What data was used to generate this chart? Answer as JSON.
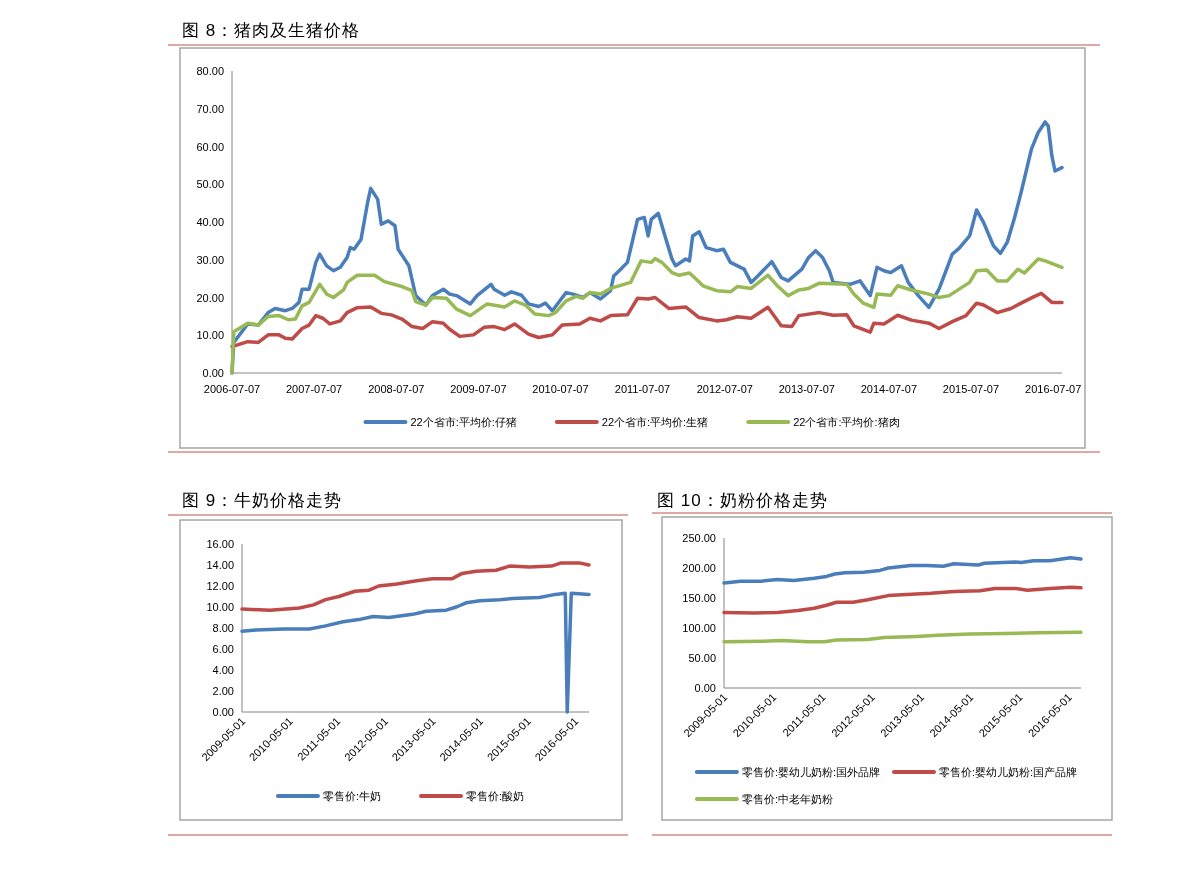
{
  "chart_data": [
    {
      "type": "line",
      "title": "图 8：猪肉及生猪价格",
      "xlim": [
        "2006-07-07",
        "2016-08-15"
      ],
      "xticks": [
        "2006-07-07",
        "2007-07-07",
        "2008-07-07",
        "2009-07-07",
        "2010-07-07",
        "2011-07-07",
        "2012-07-07",
        "2013-07-07",
        "2014-07-07",
        "2015-07-07",
        "2016-07-07"
      ],
      "ylim": [
        0,
        80
      ],
      "yticks": [
        {
          "value": 0,
          "label": "0.00"
        },
        {
          "value": 10,
          "label": "10.00"
        },
        {
          "value": 20,
          "label": "20.00"
        },
        {
          "value": 30,
          "label": "30.00"
        },
        {
          "value": 40,
          "label": "40.00"
        },
        {
          "value": 50,
          "label": "50.00"
        },
        {
          "value": 60,
          "label": "60.00"
        },
        {
          "value": 70,
          "label": "70.00"
        },
        {
          "value": 80,
          "label": "80.00"
        }
      ],
      "legend": "bottom",
      "marker": "none",
      "line_style": "solid",
      "series": [
        {
          "name": "22个省市:平均价:仔猪",
          "color": "#4a7ebb",
          "x": [
            "2006-07-07",
            "2006-07-15",
            "2006-09-15",
            "2006-11-01",
            "2006-12-15",
            "2007-01-15",
            "2007-03-01",
            "2007-04-01",
            "2007-05-01",
            "2007-05-15",
            "2007-06-15",
            "2007-07-15",
            "2007-08-01",
            "2007-09-01",
            "2007-10-01",
            "2007-11-01",
            "2007-12-01",
            "2007-12-15",
            "2008-01-01",
            "2008-02-01",
            "2008-03-01",
            "2008-03-15",
            "2008-04-15",
            "2008-05-01",
            "2008-06-01",
            "2008-07-01",
            "2008-07-15",
            "2008-09-01",
            "2008-10-01",
            "2008-11-15",
            "2008-12-15",
            "2009-02-01",
            "2009-03-01",
            "2009-04-01",
            "2009-06-01",
            "2009-07-01",
            "2009-09-01",
            "2009-09-15",
            "2009-11-01",
            "2009-12-01",
            "2010-01-15",
            "2010-02-15",
            "2010-04-01",
            "2010-05-01",
            "2010-06-01",
            "2010-08-01",
            "2010-09-01",
            "2010-10-15",
            "2010-11-15",
            "2011-01-01",
            "2011-02-15",
            "2011-03-01",
            "2011-04-01",
            "2011-05-01",
            "2011-06-15",
            "2011-07-15",
            "2011-08-01",
            "2011-08-15",
            "2011-09-15",
            "2011-10-15",
            "2011-11-15",
            "2011-12-01",
            "2012-01-15",
            "2012-02-01",
            "2012-02-15",
            "2012-03-15",
            "2012-04-15",
            "2012-06-01",
            "2012-07-01",
            "2012-08-01",
            "2012-10-01",
            "2012-11-01",
            "2012-12-01",
            "2013-02-01",
            "2013-03-15",
            "2013-04-15",
            "2013-06-15",
            "2013-07-15",
            "2013-08-15",
            "2013-09-15",
            "2013-10-15",
            "2013-11-01",
            "2014-01-15",
            "2014-03-01",
            "2014-04-15",
            "2014-05-15",
            "2014-06-15",
            "2014-07-15",
            "2014-09-01",
            "2014-10-01",
            "2014-11-15",
            "2015-01-01",
            "2015-02-15",
            "2015-04-15",
            "2015-05-15",
            "2015-07-01",
            "2015-08-01",
            "2015-09-01",
            "2015-10-15",
            "2015-11-15",
            "2015-12-15",
            "2016-01-15",
            "2016-02-15",
            "2016-04-01",
            "2016-05-01",
            "2016-06-01",
            "2016-06-15",
            "2016-07-01",
            "2016-07-15",
            "2016-08-15"
          ],
          "values": [
            0,
            8.1,
            13,
            12.7,
            16,
            17.1,
            16.5,
            17.1,
            18.7,
            22.2,
            22.2,
            29.3,
            31.5,
            28.4,
            27.1,
            28,
            30.6,
            33.2,
            32.8,
            35.4,
            45.1,
            48.9,
            46,
            39.4,
            40.3,
            39,
            32.8,
            28.4,
            20.5,
            18,
            20.5,
            22.2,
            20.9,
            20.5,
            18.3,
            20.5,
            23.5,
            22.2,
            20.6,
            21.5,
            20.6,
            18.3,
            17.6,
            18.5,
            16.5,
            21.3,
            20.9,
            20,
            21.3,
            19.6,
            21.8,
            25.7,
            27.5,
            29.3,
            40.7,
            41.2,
            36.3,
            40.7,
            42.3,
            36.3,
            30.2,
            28.4,
            30.2,
            29.7,
            36.3,
            37.4,
            33.2,
            32.4,
            32.8,
            29.3,
            27.5,
            24,
            25.7,
            29.5,
            25.3,
            24.4,
            27.5,
            30.6,
            32.4,
            30.6,
            27.1,
            24,
            23.5,
            24.4,
            20.5,
            28,
            27.1,
            26.6,
            28.4,
            24,
            20.5,
            17.4,
            22.2,
            31.5,
            33,
            36.3,
            43.2,
            39.9,
            33.7,
            31.7,
            34.6,
            40.7,
            47.8,
            59.3,
            63.7,
            66.5,
            65.4,
            57.5,
            53.5,
            54.4
          ]
        },
        {
          "name": "22个省市:平均价:生猪",
          "color": "#be4b48",
          "x": [
            "2006-07-07",
            "2006-09-15",
            "2006-11-01",
            "2006-12-15",
            "2007-02-01",
            "2007-03-01",
            "2007-04-01",
            "2007-05-15",
            "2007-06-15",
            "2007-07-15",
            "2007-08-15",
            "2007-09-15",
            "2007-11-01",
            "2007-12-01",
            "2008-01-15",
            "2008-03-15",
            "2008-05-01",
            "2008-06-15",
            "2008-08-01",
            "2008-09-15",
            "2008-11-01",
            "2008-12-15",
            "2009-02-01",
            "2009-03-01",
            "2009-04-15",
            "2009-06-15",
            "2009-08-01",
            "2009-09-15",
            "2009-11-01",
            "2009-12-15",
            "2010-02-15",
            "2010-04-01",
            "2010-06-01",
            "2010-07-15",
            "2010-10-01",
            "2010-11-15",
            "2011-01-01",
            "2011-02-15",
            "2011-05-01",
            "2011-06-15",
            "2011-08-01",
            "2011-09-01",
            "2011-11-01",
            "2012-01-15",
            "2012-03-15",
            "2012-06-01",
            "2012-07-15",
            "2012-09-01",
            "2012-11-01",
            "2013-01-15",
            "2013-03-15",
            "2013-05-01",
            "2013-06-01",
            "2013-09-01",
            "2013-11-01",
            "2014-01-01",
            "2014-02-01",
            "2014-04-15",
            "2014-05-01",
            "2014-06-15",
            "2014-08-15",
            "2014-10-15",
            "2015-01-01",
            "2015-02-15",
            "2015-04-15",
            "2015-06-15",
            "2015-08-01",
            "2015-09-01",
            "2015-11-01",
            "2016-01-01",
            "2016-02-15",
            "2016-04-15",
            "2016-05-15",
            "2016-07-01",
            "2016-08-15"
          ],
          "values": [
            7,
            8.3,
            8.1,
            10.1,
            10.1,
            9.2,
            9,
            11.8,
            12.7,
            15.2,
            14.5,
            13,
            13.8,
            16,
            17.3,
            17.5,
            15.8,
            15.4,
            14.3,
            12.3,
            11.8,
            13.6,
            13.2,
            11.6,
            9.7,
            10.1,
            12.1,
            12.3,
            11.5,
            13,
            10.3,
            9.4,
            10.1,
            12.7,
            13,
            14.5,
            13.8,
            15.2,
            15.4,
            19.8,
            19.6,
            20,
            17.1,
            17.5,
            14.7,
            13.8,
            14.1,
            14.9,
            14.5,
            17.4,
            12.5,
            12.3,
            15.2,
            16,
            15.3,
            15.4,
            12.5,
            10.8,
            13.2,
            13,
            15.3,
            14,
            13.2,
            11.8,
            13.6,
            15.2,
            18.5,
            18,
            16,
            17.1,
            18.5,
            20.3,
            21.1,
            18.7,
            18.7
          ]
        },
        {
          "name": "22个省市:平均价:猪肉",
          "color": "#98b954",
          "x": [
            "2006-07-07",
            "2006-07-15",
            "2006-09-15",
            "2006-11-01",
            "2006-12-15",
            "2007-02-01",
            "2007-03-15",
            "2007-04-15",
            "2007-05-15",
            "2007-06-15",
            "2007-08-01",
            "2007-09-01",
            "2007-10-01",
            "2007-11-15",
            "2007-12-01",
            "2008-01-15",
            "2008-04-01",
            "2008-05-15",
            "2008-08-01",
            "2008-09-15",
            "2008-10-01",
            "2008-11-15",
            "2008-12-15",
            "2009-02-15",
            "2009-04-01",
            "2009-06-01",
            "2009-08-15",
            "2009-11-01",
            "2009-12-15",
            "2010-02-01",
            "2010-03-15",
            "2010-05-15",
            "2010-06-15",
            "2010-08-01",
            "2010-09-15",
            "2010-10-15",
            "2010-11-15",
            "2011-01-01",
            "2011-02-15",
            "2011-05-15",
            "2011-07-01",
            "2011-08-15",
            "2011-09-01",
            "2011-10-01",
            "2011-11-15",
            "2011-12-15",
            "2012-02-01",
            "2012-03-01",
            "2012-04-01",
            "2012-06-01",
            "2012-08-01",
            "2012-09-01",
            "2012-11-01",
            "2013-01-15",
            "2013-03-01",
            "2013-04-15",
            "2013-06-01",
            "2013-07-15",
            "2013-09-01",
            "2014-01-01",
            "2014-02-01",
            "2014-03-15",
            "2014-05-01",
            "2014-05-15",
            "2014-07-15",
            "2014-08-15",
            "2014-10-15",
            "2015-01-01",
            "2015-02-15",
            "2015-04-01",
            "2015-07-01",
            "2015-08-01",
            "2015-09-15",
            "2015-11-01",
            "2015-12-15",
            "2016-02-01",
            "2016-03-01",
            "2016-05-01",
            "2016-06-01",
            "2016-08-15"
          ],
          "values": [
            0,
            10.9,
            13.2,
            12.7,
            15,
            15.2,
            14.1,
            14.3,
            17.8,
            18.7,
            23.5,
            20.9,
            20,
            22,
            24,
            25.9,
            25.9,
            24.2,
            22.9,
            21.8,
            18.9,
            18,
            20,
            19.8,
            16.9,
            15.2,
            18.3,
            17.5,
            19.1,
            18,
            15.6,
            15.2,
            16,
            19.1,
            20.3,
            19.8,
            21.3,
            20.9,
            22.4,
            24,
            29.7,
            29.3,
            30.3,
            29.3,
            26.6,
            25.9,
            26.5,
            24.9,
            23.1,
            21.8,
            21.5,
            22.9,
            22.4,
            25.9,
            22.9,
            20.5,
            22,
            22.4,
            23.8,
            23.5,
            20.9,
            18.5,
            17.4,
            20.9,
            20.6,
            23.1,
            22,
            20.9,
            20,
            20.5,
            24,
            27.1,
            27.3,
            24.4,
            24.4,
            27.5,
            26.5,
            30.2,
            29.7,
            28
          ]
        }
      ]
    },
    {
      "type": "line",
      "title": "图 9：牛奶价格走势",
      "xlim": [
        "2009-05-01",
        "2016-08-15"
      ],
      "xticks": [
        "2009-05-01",
        "2010-05-01",
        "2011-05-01",
        "2012-05-01",
        "2013-05-01",
        "2014-05-01",
        "2015-05-01",
        "2016-05-01"
      ],
      "ylim": [
        0,
        16
      ],
      "yticks": [
        {
          "value": 0,
          "label": "0.00"
        },
        {
          "value": 2,
          "label": "2.00"
        },
        {
          "value": 4,
          "label": "4.00"
        },
        {
          "value": 6,
          "label": "6.00"
        },
        {
          "value": 8,
          "label": "8.00"
        },
        {
          "value": 10,
          "label": "10.00"
        },
        {
          "value": 12,
          "label": "12.00"
        },
        {
          "value": 14,
          "label": "14.00"
        },
        {
          "value": 16,
          "label": "16.00"
        }
      ],
      "legend": "bottom",
      "marker": "none",
      "line_style": "solid",
      "series": [
        {
          "name": "零售价:牛奶",
          "color": "#4a7ebb",
          "x": [
            "2009-05-01",
            "2009-08-15",
            "2010-03-15",
            "2010-10-01",
            "2011-02-01",
            "2011-06-15",
            "2011-10-15",
            "2012-02-01",
            "2012-06-01",
            "2012-12-01",
            "2013-03-15",
            "2013-08-15",
            "2013-11-01",
            "2014-01-15",
            "2014-05-01",
            "2014-10-01",
            "2015-01-01",
            "2015-08-01",
            "2015-12-01",
            "2016-02-15",
            "2016-03-01",
            "2016-04-01",
            "2016-08-15"
          ],
          "values": [
            7.7,
            7.8,
            7.9,
            7.9,
            8.2,
            8.6,
            8.8,
            9.1,
            9.0,
            9.3,
            9.6,
            9.7,
            10.0,
            10.4,
            10.6,
            10.7,
            10.8,
            10.9,
            11.2,
            11.3,
            0,
            11.3,
            11.2
          ]
        },
        {
          "name": "零售价:酸奶",
          "color": "#be4b48",
          "x": [
            "2009-05-01",
            "2009-12-01",
            "2010-07-15",
            "2010-11-01",
            "2011-02-01",
            "2011-05-15",
            "2011-09-15",
            "2012-01-01",
            "2012-03-15",
            "2012-08-01",
            "2013-01-01",
            "2013-05-01",
            "2013-10-01",
            "2013-12-15",
            "2014-04-01",
            "2014-09-01",
            "2014-12-15",
            "2015-05-15",
            "2015-11-01",
            "2016-01-15",
            "2016-06-01",
            "2016-08-15"
          ],
          "values": [
            9.8,
            9.7,
            9.9,
            10.2,
            10.7,
            11.0,
            11.5,
            11.6,
            12.0,
            12.2,
            12.5,
            12.7,
            12.7,
            13.2,
            13.4,
            13.5,
            13.9,
            13.8,
            13.9,
            14.2,
            14.2,
            14.0
          ]
        }
      ]
    },
    {
      "type": "line",
      "title": "图 10：奶粉价格走势",
      "xlim": [
        "2009-05-01",
        "2016-08-01"
      ],
      "xticks": [
        "2009-05-01",
        "2010-05-01",
        "2011-05-01",
        "2012-05-01",
        "2013-05-01",
        "2014-05-01",
        "2015-05-01",
        "2016-05-01"
      ],
      "ylim": [
        0,
        250
      ],
      "yticks": [
        {
          "value": 0,
          "label": "0.00"
        },
        {
          "value": 50,
          "label": "50.00"
        },
        {
          "value": 100,
          "label": "100.00"
        },
        {
          "value": 150,
          "label": "150.00"
        },
        {
          "value": 200,
          "label": "200.00"
        },
        {
          "value": 250,
          "label": "250.00"
        }
      ],
      "legend": "bottom",
      "marker": "none",
      "line_style": "solid",
      "series": [
        {
          "name": "零售价:婴幼儿奶粉:国外品牌",
          "color": "#4a7ebb",
          "x": [
            "2009-05-01",
            "2009-09-01",
            "2010-02-01",
            "2010-06-01",
            "2010-10-01",
            "2011-03-01",
            "2011-06-01",
            "2011-08-01",
            "2011-10-15",
            "2012-03-01",
            "2012-07-01",
            "2012-09-01",
            "2013-02-15",
            "2013-06-15",
            "2013-10-15",
            "2014-01-01",
            "2014-07-01",
            "2014-08-15",
            "2015-04-01",
            "2015-05-15",
            "2015-08-15",
            "2015-12-15",
            "2016-05-15",
            "2016-08-01"
          ],
          "values": [
            175,
            178,
            178,
            181,
            179,
            183,
            186,
            190,
            192,
            193,
            196,
            200,
            204,
            204,
            203,
            207,
            205,
            208,
            210,
            209,
            212,
            212,
            217,
            215
          ]
        },
        {
          "name": "零售价:婴幼儿奶粉:国产品牌",
          "color": "#be4b48",
          "x": [
            "2009-05-01",
            "2009-12-15",
            "2010-06-01",
            "2010-11-01",
            "2011-03-01",
            "2011-06-01",
            "2011-08-15",
            "2011-12-15",
            "2012-04-01",
            "2012-09-01",
            "2013-01-15",
            "2013-07-15",
            "2014-01-01",
            "2014-07-15",
            "2014-11-01",
            "2015-04-01",
            "2015-07-01",
            "2015-12-15",
            "2016-05-15",
            "2016-08-01"
          ],
          "values": [
            126,
            125,
            126,
            129,
            133,
            138,
            143,
            143,
            147,
            154,
            156,
            158,
            161,
            162,
            166,
            166,
            163,
            166,
            168,
            167
          ]
        },
        {
          "name": "零售价:中老年奶粉",
          "color": "#98b954",
          "x": [
            "2009-05-01",
            "2010-02-15",
            "2010-07-01",
            "2011-01-15",
            "2011-05-15",
            "2011-08-15",
            "2012-04-01",
            "2012-08-01",
            "2013-04-01",
            "2013-09-01",
            "2014-05-01",
            "2015-01-15",
            "2015-09-15",
            "2016-08-01"
          ],
          "values": [
            77,
            78,
            79,
            77,
            77,
            80,
            81,
            84,
            86,
            88,
            90,
            91,
            92,
            93
          ]
        }
      ]
    }
  ]
}
